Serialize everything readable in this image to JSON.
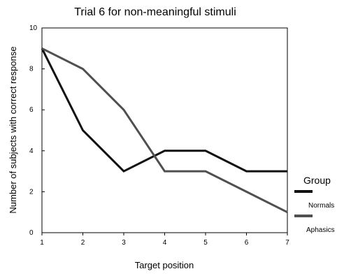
{
  "chart_data": {
    "type": "line",
    "title": "Trial 6 for non-meaningful stimuli",
    "xlabel": "Target position",
    "ylabel": "Number of subjects with correct response",
    "x": [
      1,
      2,
      3,
      4,
      5,
      6,
      7
    ],
    "xlim": [
      1,
      7
    ],
    "ylim": [
      0,
      10
    ],
    "yticks": [
      0,
      2,
      4,
      6,
      8,
      10
    ],
    "xticks": [
      1,
      2,
      3,
      4,
      5,
      6,
      7
    ],
    "grid": false,
    "legend_title": "Group",
    "legend_placement": "right",
    "series": [
      {
        "name": "Normals",
        "color": "#111111",
        "values": [
          9,
          5,
          3,
          4,
          4,
          3,
          3
        ]
      },
      {
        "name": "Aphasics",
        "color": "#505050",
        "values": [
          9,
          8,
          6,
          3,
          3,
          2,
          1
        ]
      }
    ]
  }
}
